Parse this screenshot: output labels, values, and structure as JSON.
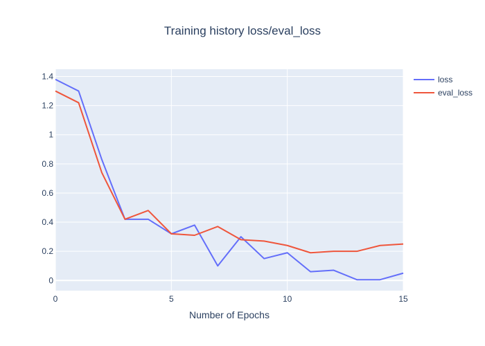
{
  "chart_data": {
    "type": "line",
    "title": "Training history loss/eval_loss",
    "xlabel": "Number of Epochs",
    "ylabel": "",
    "xlim": [
      0,
      15
    ],
    "ylim": [
      -0.07,
      1.45
    ],
    "x_ticks": [
      0,
      5,
      10,
      15
    ],
    "y_ticks": [
      0,
      0.2,
      0.4,
      0.6,
      0.8,
      1,
      1.2,
      1.4
    ],
    "x_tick_labels": [
      "0",
      "5",
      "10",
      "15"
    ],
    "y_tick_labels": [
      "0",
      "0.2",
      "0.4",
      "0.6",
      "0.8",
      "1",
      "1.2",
      "1.4"
    ],
    "grid": true,
    "legend_position": "top-right",
    "background_color": "#e5ecf6",
    "x": [
      0,
      1,
      2,
      3,
      4,
      5,
      6,
      7,
      8,
      9,
      10,
      11,
      12,
      13,
      14,
      15
    ],
    "series": [
      {
        "name": "loss",
        "color": "#636efa",
        "values": [
          1.38,
          1.3,
          0.83,
          0.42,
          0.42,
          0.32,
          0.38,
          0.1,
          0.3,
          0.15,
          0.19,
          0.06,
          0.07,
          0.005,
          0.005,
          0.05
        ]
      },
      {
        "name": "eval_loss",
        "color": "#ef553b",
        "values": [
          1.3,
          1.22,
          0.74,
          0.42,
          0.48,
          0.32,
          0.31,
          0.37,
          0.28,
          0.27,
          0.24,
          0.19,
          0.2,
          0.2,
          0.24,
          0.25
        ]
      }
    ]
  }
}
